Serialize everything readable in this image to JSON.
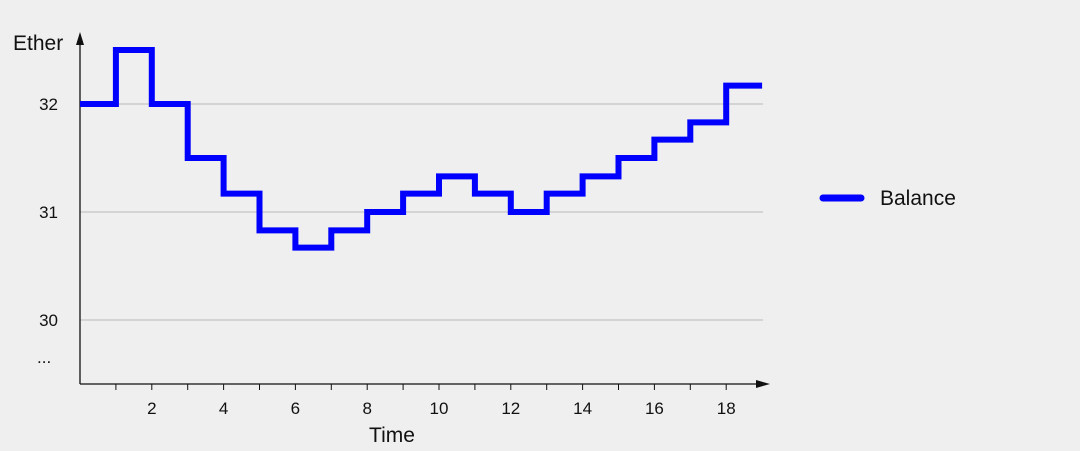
{
  "chart_data": {
    "type": "line",
    "step": "post",
    "xlabel": "Time",
    "ylabel": "Ether",
    "xlim": [
      0,
      19
    ],
    "ylim": [
      29.4,
      32.6
    ],
    "x_ticks": [
      1,
      2,
      3,
      4,
      5,
      6,
      7,
      8,
      9,
      10,
      11,
      12,
      13,
      14,
      15,
      16,
      17,
      18
    ],
    "x_tick_labels": [
      "2",
      "4",
      "6",
      "8",
      "10",
      "12",
      "14",
      "16",
      "18"
    ],
    "x_tick_label_values": [
      2,
      4,
      6,
      8,
      10,
      12,
      14,
      16,
      18
    ],
    "y_tick_labels": [
      "32",
      "31",
      "30"
    ],
    "y_tick_values": [
      32,
      31,
      30
    ],
    "y_extra_label": "...",
    "grid": {
      "horizontal": true,
      "vertical": false
    },
    "legend_position": "right",
    "series": [
      {
        "name": "Balance",
        "color": "#0000ff",
        "x": [
          0,
          1,
          2,
          3,
          4,
          5,
          6,
          7,
          8,
          9,
          10,
          11,
          12,
          13,
          14,
          15,
          16,
          17,
          18,
          19
        ],
        "y": [
          32.0,
          32.5,
          32.0,
          31.5,
          31.17,
          30.83,
          30.67,
          30.83,
          31.0,
          31.17,
          31.33,
          31.17,
          31.0,
          31.17,
          31.33,
          31.5,
          31.67,
          31.83,
          32.17,
          32.17
        ]
      }
    ]
  }
}
